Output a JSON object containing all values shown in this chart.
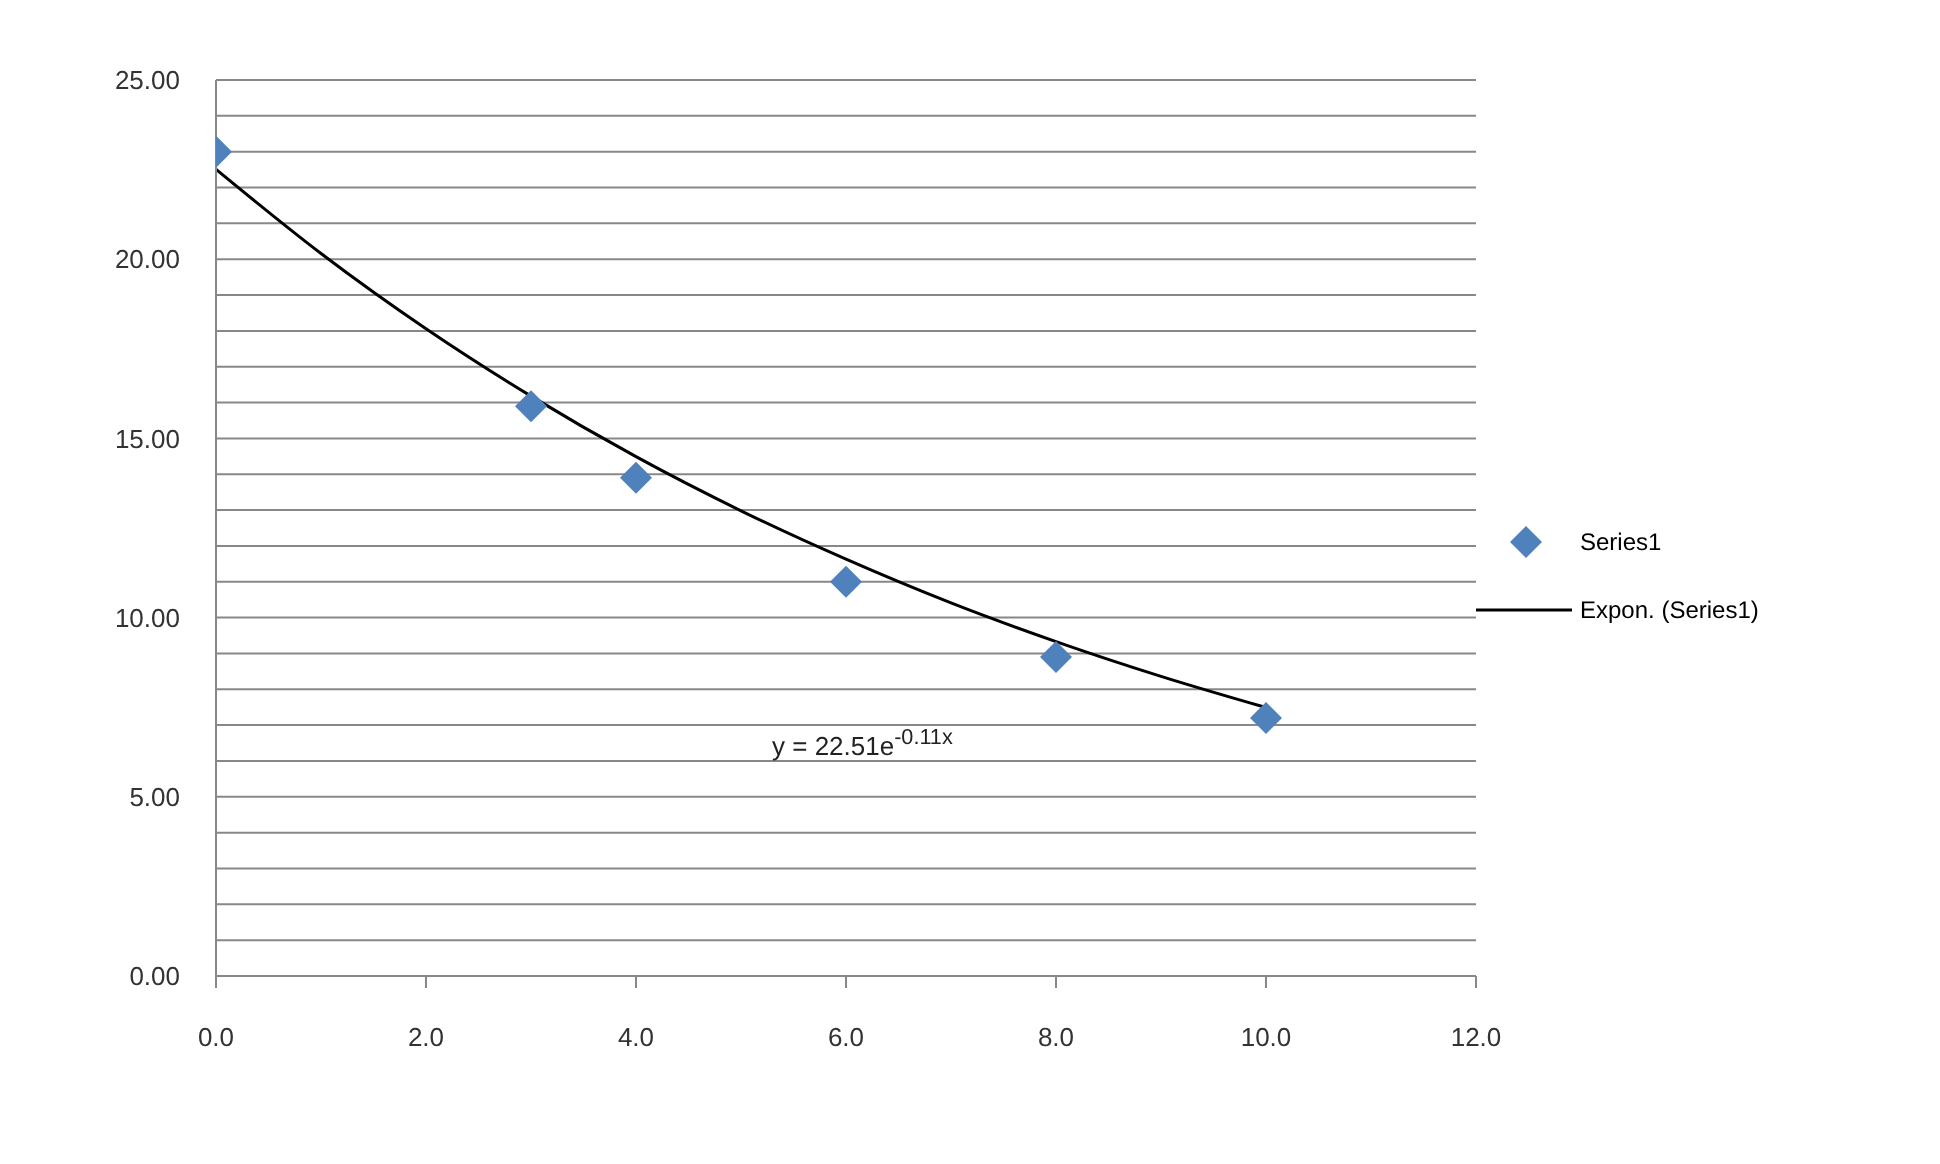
{
  "chart_data": {
    "type": "scatter",
    "grid": "y",
    "legend": "right",
    "x": [
      0,
      3,
      4,
      6,
      8,
      10
    ],
    "series": [
      {
        "name": "Series1",
        "color": "#4f81bd",
        "marker": "diamond",
        "values": [
          23.0,
          15.9,
          13.9,
          11.0,
          8.9,
          7.2
        ]
      },
      {
        "name": "Expon. (Series1)",
        "type": "line",
        "color": "#000000",
        "marker": "none",
        "x": [
          0,
          1,
          2,
          3,
          4,
          5,
          6,
          7,
          8,
          9,
          10
        ],
        "values": [
          22.51,
          20.16,
          18.06,
          16.18,
          14.49,
          12.98,
          11.63,
          10.41,
          9.33,
          8.36,
          7.49
        ]
      }
    ],
    "xlim": [
      0,
      12
    ],
    "xticks": [
      {
        "value": 0,
        "label": "0.0"
      },
      {
        "value": 2,
        "label": "2.0"
      },
      {
        "value": 4,
        "label": "4.0"
      },
      {
        "value": 6,
        "label": "6.0"
      },
      {
        "value": 8,
        "label": "8.0"
      },
      {
        "value": 10,
        "label": "10.0"
      },
      {
        "value": 12,
        "label": "12.0"
      }
    ],
    "ylim": [
      0,
      25
    ],
    "yticks": [
      {
        "value": 0,
        "label": "0.00"
      },
      {
        "value": 1,
        "label": null
      },
      {
        "value": 2,
        "label": null
      },
      {
        "value": 3,
        "label": null
      },
      {
        "value": 4,
        "label": null
      },
      {
        "value": 5,
        "label": "5.00"
      },
      {
        "value": 6,
        "label": null
      },
      {
        "value": 7,
        "label": null
      },
      {
        "value": 8,
        "label": null
      },
      {
        "value": 9,
        "label": null
      },
      {
        "value": 10,
        "label": "10.00"
      },
      {
        "value": 11,
        "label": null
      },
      {
        "value": 12,
        "label": null
      },
      {
        "value": 13,
        "label": null
      },
      {
        "value": 14,
        "label": null
      },
      {
        "value": 15,
        "label": "15.00"
      },
      {
        "value": 16,
        "label": null
      },
      {
        "value": 17,
        "label": null
      },
      {
        "value": 18,
        "label": null
      },
      {
        "value": 19,
        "label": null
      },
      {
        "value": 20,
        "label": "20.00"
      },
      {
        "value": 21,
        "label": null
      },
      {
        "value": 22,
        "label": null
      },
      {
        "value": 23,
        "label": null
      },
      {
        "value": 24,
        "label": null
      },
      {
        "value": 25,
        "label": "25.00"
      }
    ],
    "annotations": [
      "y = 22.51e$^{-0.11x}$"
    ]
  }
}
